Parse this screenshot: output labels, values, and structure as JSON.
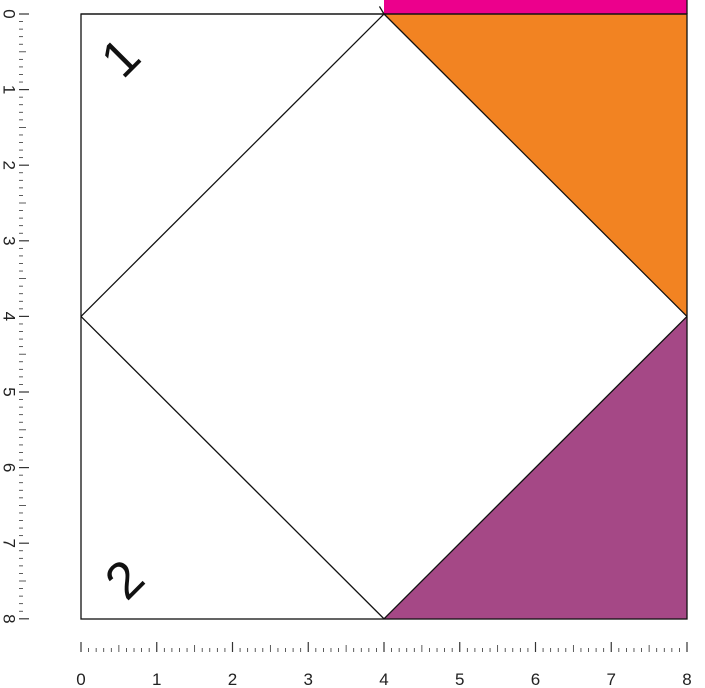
{
  "diagram": {
    "units": {
      "min": 0,
      "max": 8,
      "minor_per_unit": 10
    },
    "colors": {
      "magenta": "#ec008c",
      "orange": "#f28322",
      "purple": "#a54886",
      "line": "#111111",
      "background": "#ffffff"
    },
    "regions": [
      {
        "name": "top-right-magenta-strip",
        "color": "magenta",
        "points": [
          [
            4,
            -0.5
          ],
          [
            8,
            -0.5
          ],
          [
            8,
            0
          ],
          [
            4,
            0
          ]
        ]
      },
      {
        "name": "top-right-orange-triangle",
        "color": "orange",
        "points": [
          [
            4,
            0
          ],
          [
            8,
            0
          ],
          [
            8,
            4
          ]
        ]
      },
      {
        "name": "bottom-right-purple-triangle",
        "color": "purple",
        "points": [
          [
            8,
            4
          ],
          [
            8,
            8
          ],
          [
            4,
            8
          ]
        ]
      }
    ],
    "lines": [
      {
        "name": "diamond-edge-top-left",
        "from": [
          4,
          0
        ],
        "to": [
          0,
          4
        ]
      },
      {
        "name": "diamond-edge-bottom-left",
        "from": [
          0,
          4
        ],
        "to": [
          4,
          8
        ]
      },
      {
        "name": "diamond-edge-bottom-right",
        "from": [
          4,
          8
        ],
        "to": [
          8,
          4
        ]
      },
      {
        "name": "diamond-edge-top-right",
        "from": [
          8,
          4
        ],
        "to": [
          4,
          0
        ]
      },
      {
        "name": "top-edge-extension",
        "from": [
          4,
          0
        ],
        "to": [
          3.94,
          -0.1
        ]
      }
    ],
    "corner_labels": [
      {
        "name": "corner-label-top",
        "text": "1"
      },
      {
        "name": "corner-label-bottom",
        "text": "2"
      }
    ],
    "x_axis": {
      "ticks": [
        "0",
        "1",
        "2",
        "3",
        "4",
        "5",
        "6",
        "7",
        "8"
      ]
    },
    "y_axis": {
      "ticks": [
        "0",
        "1",
        "2",
        "3",
        "4",
        "5",
        "6",
        "7",
        "8"
      ]
    }
  }
}
